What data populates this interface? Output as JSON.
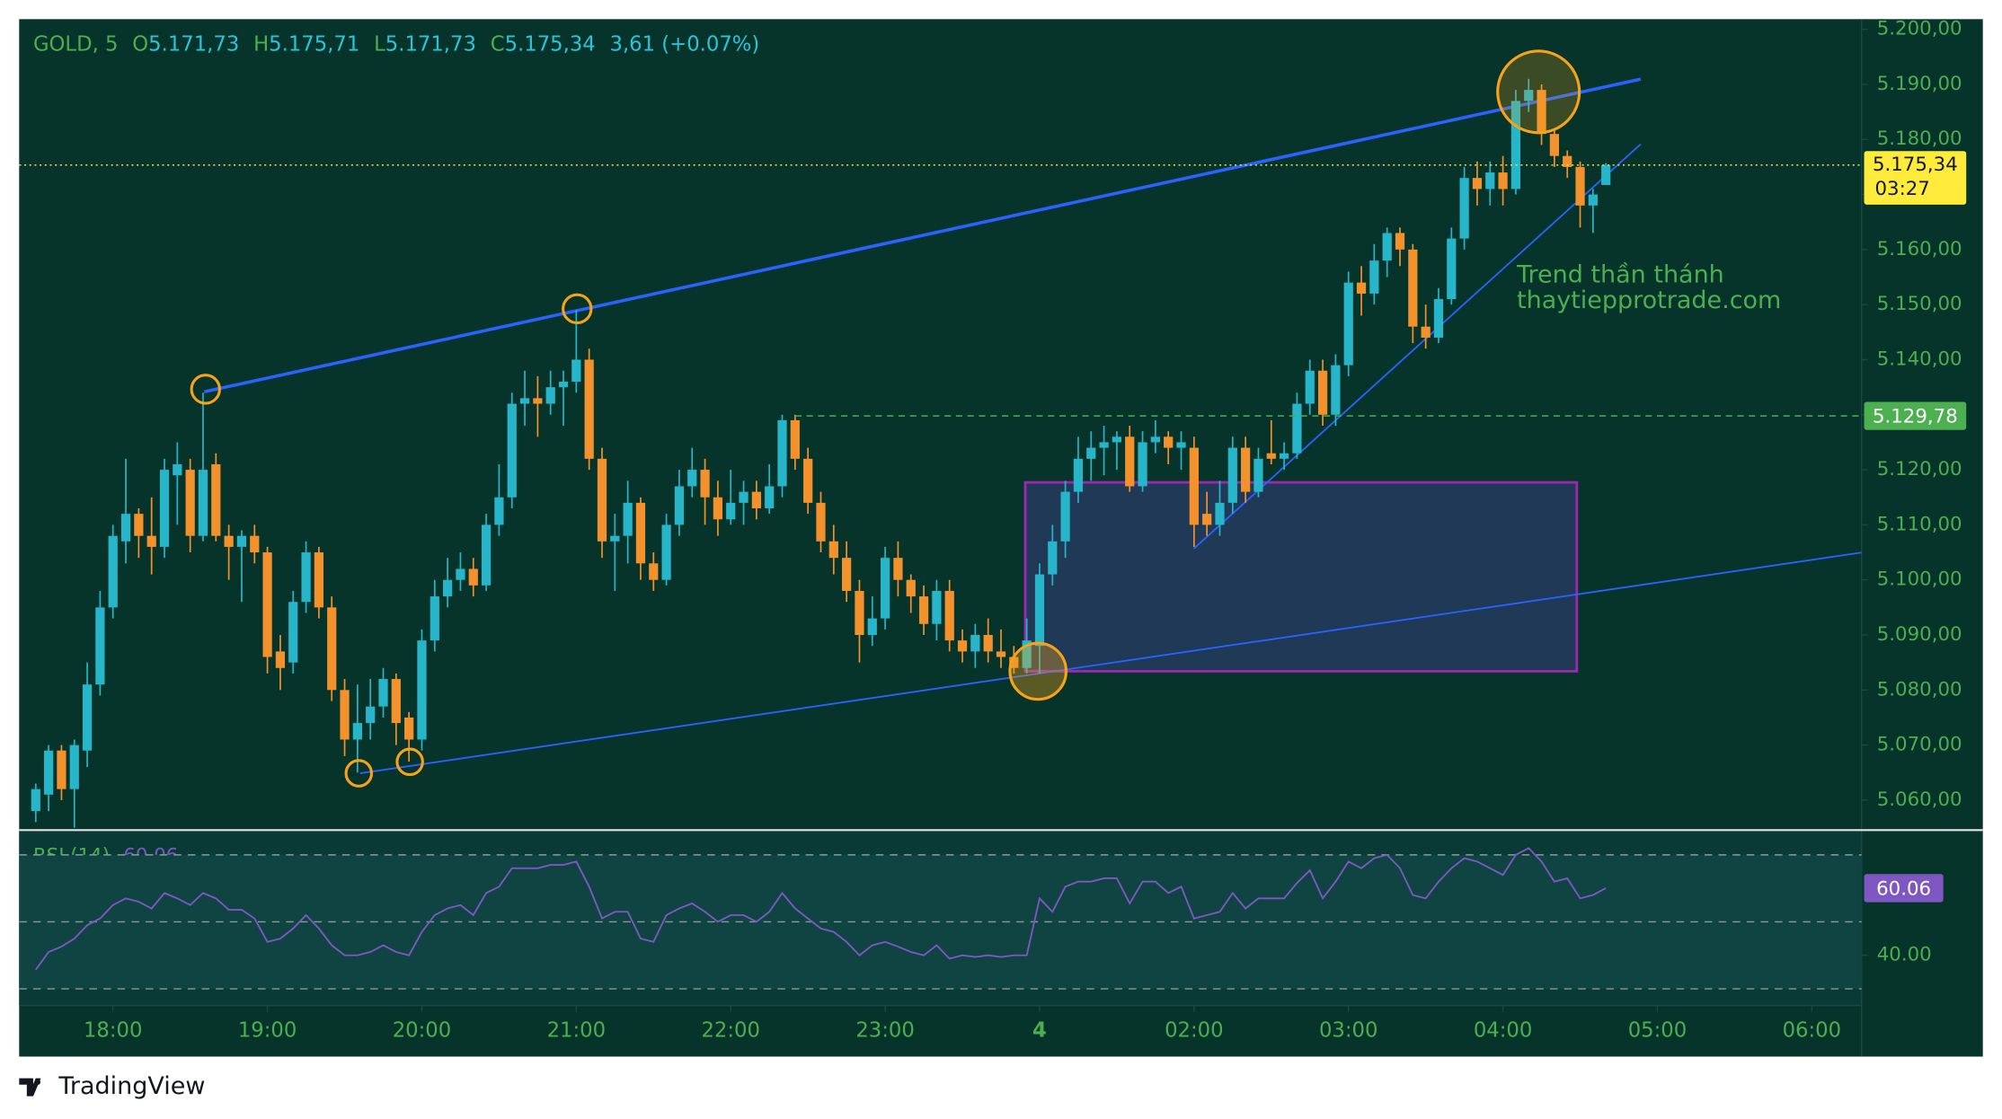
{
  "chart_data": [
    {
      "type": "candlestick",
      "symbol": "GOLD, 5",
      "header": [
        {
          "label": "O",
          "value": "5.171,73"
        },
        {
          "label": "H",
          "value": "5.175,71"
        },
        {
          "label": "L",
          "value": "5.171,73"
        },
        {
          "label": "C",
          "value": "5.175,34"
        }
      ],
      "change": "3,61 (+0.07%)",
      "annotation": [
        "Trend thần thánh",
        "thaytiepprotrade.com"
      ],
      "up_color": "#26b5c9",
      "down_color": "#f3922c",
      "x": [
        "17:30",
        "17:35",
        "17:40",
        "17:45",
        "17:50",
        "17:55",
        "18:00",
        "18:05",
        "18:10",
        "18:15",
        "18:20",
        "18:25",
        "18:30",
        "18:35",
        "18:40",
        "18:45",
        "18:50",
        "18:55",
        "19:00",
        "19:05",
        "19:10",
        "19:15",
        "19:20",
        "19:25",
        "19:30",
        "19:35",
        "19:40",
        "19:45",
        "19:50",
        "19:55",
        "20:00",
        "20:05",
        "20:10",
        "20:15",
        "20:20",
        "20:25",
        "20:30",
        "20:35",
        "20:40",
        "20:45",
        "20:50",
        "20:55",
        "21:00",
        "21:05",
        "21:10",
        "21:15",
        "21:20",
        "21:25",
        "21:30",
        "21:35",
        "21:40",
        "21:45",
        "21:50",
        "21:55",
        "22:00",
        "22:05",
        "22:10",
        "22:15",
        "22:20",
        "22:25",
        "22:30",
        "22:35",
        "22:40",
        "22:45",
        "22:50",
        "22:55",
        "23:00",
        "23:05",
        "23:10",
        "23:15",
        "23:20",
        "23:25",
        "23:30",
        "23:35",
        "23:40",
        "23:45",
        "23:50",
        "23:55",
        "01:00",
        "01:05",
        "01:10",
        "01:15",
        "01:20",
        "01:25",
        "01:30",
        "01:35",
        "01:40",
        "01:45",
        "01:50",
        "01:55",
        "02:00",
        "02:05",
        "02:10",
        "02:15",
        "02:20",
        "02:25",
        "02:30",
        "02:35",
        "02:40",
        "02:45",
        "02:50",
        "02:55",
        "03:00",
        "03:05",
        "03:10",
        "03:15",
        "03:20",
        "03:25",
        "03:30",
        "03:35",
        "03:40",
        "03:45",
        "03:50",
        "03:55",
        "04:00",
        "04:05",
        "04:10",
        "04:15",
        "04:20",
        "04:25",
        "04:30",
        "04:35",
        "04:40"
      ],
      "open": [
        5058,
        5061,
        5069,
        5062,
        5069,
        5081,
        5095,
        5107,
        5112,
        5108,
        5106,
        5119,
        5120,
        5108,
        5121,
        5108,
        5106,
        5108,
        5105,
        5087,
        5085,
        5096,
        5105,
        5095,
        5080,
        5071,
        5074,
        5077,
        5082,
        5075,
        5071,
        5089,
        5097,
        5100,
        5102,
        5099,
        5110,
        5115,
        5132,
        5133,
        5132,
        5135,
        5136,
        5140,
        5122,
        5107,
        5108,
        5114,
        5103,
        5100,
        5110,
        5117,
        5120,
        5115,
        5111,
        5114,
        5116,
        5113,
        5117,
        5129,
        5122,
        5114,
        5107,
        5104,
        5098,
        5090,
        5093,
        5104,
        5100,
        5097,
        5092,
        5098,
        5089,
        5087,
        5090,
        5087,
        5086,
        5084,
        5088,
        5101,
        5107,
        5116,
        5122,
        5124,
        5125,
        5126,
        5117,
        5125,
        5126,
        5124,
        5124,
        5112,
        5110,
        5114,
        5124,
        5116,
        5123,
        5122,
        5123,
        5132,
        5138,
        5130,
        5139,
        5154,
        5152,
        5158,
        5163,
        5160,
        5146,
        5144,
        5151,
        5162,
        5173,
        5171,
        5174,
        5171,
        5187,
        5189,
        5181,
        5177,
        5175,
        5168,
        5171.73
      ],
      "high": [
        5063,
        5070,
        5070,
        5071,
        5085,
        5098,
        5110,
        5122,
        5113,
        5115,
        5122,
        5125,
        5122,
        5134,
        5123,
        5110,
        5109,
        5110,
        5106,
        5090,
        5098,
        5107,
        5106,
        5097,
        5082,
        5081,
        5082,
        5084,
        5083,
        5076,
        5091,
        5100,
        5104,
        5105,
        5104,
        5112,
        5121,
        5134,
        5138,
        5137,
        5138,
        5138,
        5149,
        5142,
        5124,
        5112,
        5118,
        5115,
        5105,
        5112,
        5120,
        5124,
        5122,
        5118,
        5120,
        5118,
        5118,
        5121,
        5130,
        5130,
        5124,
        5116,
        5110,
        5107,
        5100,
        5097,
        5106,
        5107,
        5101,
        5099,
        5100,
        5100,
        5091,
        5092,
        5093,
        5091,
        5088,
        5093,
        5103,
        5110,
        5118,
        5126,
        5127,
        5128,
        5127,
        5128,
        5127,
        5129,
        5127,
        5127,
        5126,
        5116,
        5118,
        5126,
        5126,
        5124,
        5129,
        5125,
        5134,
        5140,
        5140,
        5141,
        5156,
        5157,
        5161,
        5164,
        5164,
        5161,
        5150,
        5153,
        5164,
        5175,
        5176,
        5176,
        5177,
        5189,
        5191,
        5190,
        5182,
        5178,
        5176,
        5171,
        5175.71
      ],
      "low": [
        5056,
        5058,
        5060,
        5055,
        5066,
        5079,
        5093,
        5103,
        5104,
        5101,
        5104,
        5110,
        5105,
        5107,
        5107,
        5100,
        5096,
        5103,
        5083,
        5080,
        5083,
        5094,
        5093,
        5078,
        5068,
        5065,
        5071,
        5075,
        5070,
        5067,
        5069,
        5087,
        5095,
        5098,
        5097,
        5098,
        5108,
        5113,
        5128,
        5126,
        5130,
        5128,
        5134,
        5120,
        5104,
        5098,
        5103,
        5100,
        5098,
        5099,
        5108,
        5115,
        5110,
        5108,
        5110,
        5110,
        5111,
        5112,
        5115,
        5120,
        5112,
        5105,
        5101,
        5096,
        5085,
        5088,
        5091,
        5097,
        5094,
        5090,
        5089,
        5087,
        5085,
        5084,
        5085,
        5084,
        5083,
        5083,
        5083,
        5099,
        5104,
        5114,
        5118,
        5119,
        5120,
        5116,
        5116,
        5123,
        5121,
        5120,
        5106,
        5108,
        5108,
        5112,
        5114,
        5115,
        5121,
        5120,
        5122,
        5130,
        5128,
        5128,
        5137,
        5148,
        5150,
        5155,
        5157,
        5143,
        5142,
        5143,
        5150,
        5160,
        5168,
        5168,
        5168,
        5170,
        5185,
        5179,
        5175,
        5173,
        5164,
        5163,
        5171.73
      ],
      "close": [
        5062,
        5069,
        5062,
        5070,
        5081,
        5095,
        5108,
        5112,
        5108,
        5106,
        5120,
        5121,
        5108,
        5120,
        5108,
        5106,
        5108,
        5105,
        5086,
        5084,
        5096,
        5105,
        5095,
        5080,
        5071,
        5074,
        5077,
        5082,
        5074,
        5071,
        5089,
        5097,
        5100,
        5102,
        5099,
        5110,
        5115,
        5132,
        5133,
        5132,
        5135,
        5136,
        5140,
        5122,
        5107,
        5108,
        5114,
        5103,
        5100,
        5110,
        5117,
        5120,
        5115,
        5111,
        5114,
        5116,
        5113,
        5117,
        5129,
        5122,
        5114,
        5107,
        5104,
        5098,
        5090,
        5093,
        5104,
        5100,
        5097,
        5092,
        5098,
        5089,
        5087,
        5090,
        5087,
        5086,
        5084,
        5089,
        5101,
        5107,
        5116,
        5122,
        5124,
        5125,
        5126,
        5117,
        5125,
        5126,
        5124,
        5125,
        5110,
        5110,
        5114,
        5124,
        5116,
        5122,
        5122,
        5123,
        5132,
        5138,
        5130,
        5139,
        5154,
        5152,
        5158,
        5163,
        5160,
        5146,
        5144,
        5151,
        5162,
        5173,
        5171,
        5174,
        5171,
        5187,
        5189,
        5181,
        5177,
        5175,
        5168,
        5170,
        5175.34
      ],
      "ylim": [
        5054.67,
        5201.85
      ],
      "yticks": [
        {
          "value": 5060,
          "label": "5.060,00"
        },
        {
          "value": 5070,
          "label": "5.070,00"
        },
        {
          "value": 5080,
          "label": "5.080,00"
        },
        {
          "value": 5090,
          "label": "5.090,00"
        },
        {
          "value": 5100,
          "label": "5.100,00"
        },
        {
          "value": 5110,
          "label": "5.110,00"
        },
        {
          "value": 5120,
          "label": "5.120,00"
        },
        {
          "value": 5130,
          "label": "5.130,00"
        },
        {
          "value": 5140,
          "label": "5.140,00"
        },
        {
          "value": 5150,
          "label": "5.150,00"
        },
        {
          "value": 5160,
          "label": "5.160,00"
        },
        {
          "value": 5170,
          "label": "5.170,00"
        },
        {
          "value": 5180,
          "label": "5.180,00"
        },
        {
          "value": 5190,
          "label": "5.190,00"
        },
        {
          "value": 5200,
          "label": "5.200,00"
        }
      ],
      "xticks": [
        "18:00",
        "19:00",
        "20:00",
        "21:00",
        "22:00",
        "23:00",
        {
          "value": "01:00",
          "label": "4"
        },
        "02:00",
        "03:00",
        "04:00",
        "05:00",
        "06:00"
      ],
      "last_price": {
        "value": 5175.34,
        "label": "5.175,34",
        "countdown": "03:27",
        "color": "#ffeb3b"
      },
      "level": {
        "value": 5129.78,
        "label": "5.129,78",
        "color": "#4caf50"
      }
    },
    {
      "type": "line",
      "title": "RSI (14)",
      "series": [
        {
          "name": "RSI",
          "color": "#7e57c2",
          "values": [
            35.7,
            41,
            42.6,
            45,
            49,
            51,
            55,
            57,
            56,
            54,
            58.6,
            57,
            55,
            58.6,
            57,
            53.6,
            53.6,
            51,
            44,
            45,
            48,
            52,
            48,
            43,
            40,
            40,
            41,
            43,
            41,
            40,
            47,
            52,
            54,
            55,
            52,
            58.6,
            60.5,
            66,
            66,
            66,
            67,
            67,
            68,
            60.5,
            51,
            53,
            53,
            45,
            44,
            52,
            54,
            55.5,
            53,
            50,
            52,
            52,
            50,
            53,
            58.6,
            54,
            51,
            48,
            47,
            44,
            40,
            43,
            44,
            42.6,
            41,
            40,
            43,
            39,
            40,
            39.5,
            40,
            39.5,
            40,
            40,
            57,
            53,
            60.5,
            62,
            62,
            63,
            63,
            55.5,
            62,
            62,
            58.6,
            60.5,
            51,
            52,
            53,
            58.6,
            54,
            57,
            57,
            57,
            61.6,
            65.4,
            57,
            62,
            68,
            66,
            69,
            70,
            66,
            58,
            57,
            62,
            66,
            69,
            68,
            66,
            64,
            70,
            72,
            68,
            62,
            63,
            57,
            58,
            60.06
          ]
        }
      ],
      "ylim": [
        25,
        77.2
      ],
      "yticks": [
        {
          "value": 40,
          "label": "40.00"
        }
      ],
      "levels": [
        30,
        50,
        70
      ]
    }
  ],
  "footer": {
    "brand": "TradingView"
  }
}
